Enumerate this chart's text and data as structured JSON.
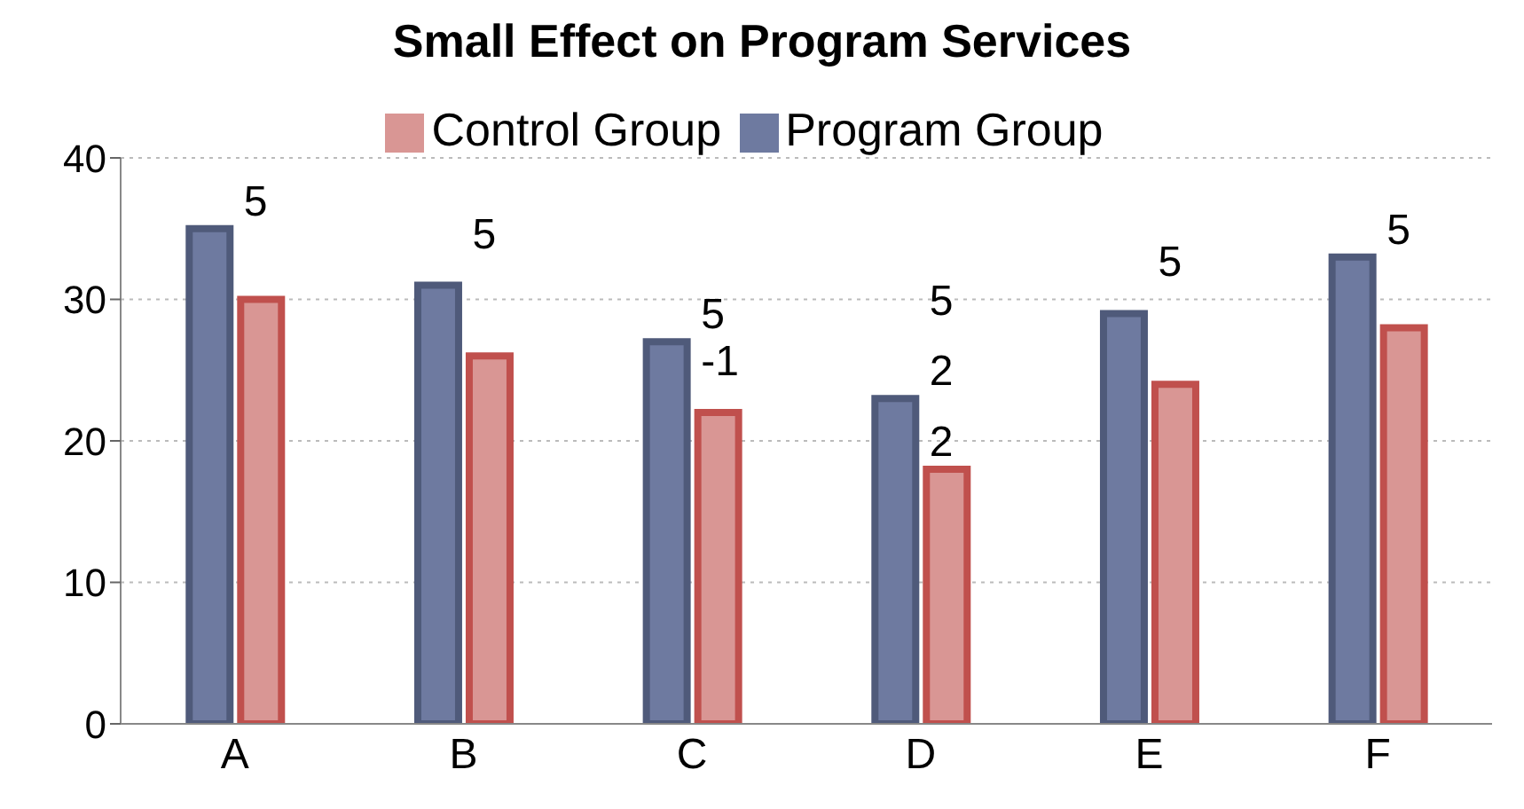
{
  "chart_data": {
    "type": "bar",
    "title": "Small Effect on Program Services",
    "categories": [
      "A",
      "B",
      "C",
      "D",
      "E",
      "F"
    ],
    "series": [
      {
        "name": "Program Group",
        "color": "#6e7aa0",
        "values": [
          35,
          31,
          27,
          23,
          29,
          33
        ]
      },
      {
        "name": "Control Group",
        "color": "#d99694",
        "values": [
          30,
          26,
          22,
          18,
          24,
          28
        ]
      }
    ],
    "ylim": [
      0,
      40
    ],
    "yticks": [
      0,
      10,
      20,
      30,
      40
    ],
    "grid": "y",
    "legend": "top",
    "annotations": [
      {
        "text": "5",
        "x": "A",
        "y": 35
      },
      {
        "text": "5",
        "x": "B",
        "y": 31
      },
      {
        "text": "5",
        "x": "C",
        "y": 27
      },
      {
        "text": "-1",
        "x": "C",
        "y": 22
      },
      {
        "text": "2",
        "x": "D",
        "y": 23
      },
      {
        "text": "5",
        "x": "D",
        "y": 23
      },
      {
        "text": "2",
        "x": "D",
        "y": 18
      },
      {
        "text": "5",
        "x": "E",
        "y": 29
      },
      {
        "text": "5",
        "x": "F",
        "y": 33
      }
    ]
  }
}
